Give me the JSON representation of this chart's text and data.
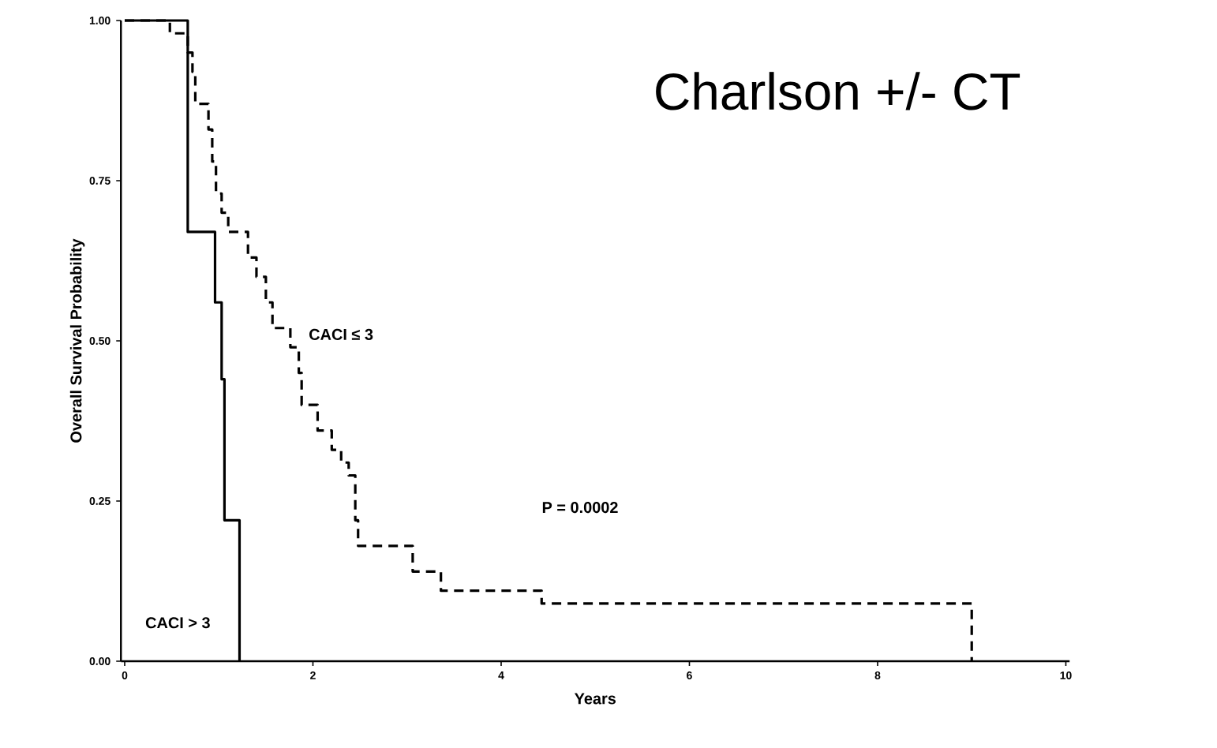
{
  "chart_data": {
    "type": "step",
    "xlabel": "Years",
    "ylabel": "Overall Survival Probability",
    "annotations": [
      "Charlson +/- CT",
      "P = 0.0002"
    ],
    "xlim": [
      0,
      10
    ],
    "ylim": [
      0,
      1
    ],
    "xticks": [
      0,
      2,
      4,
      6,
      8,
      10
    ],
    "yticks": [
      {
        "value": 0,
        "label": "0.00"
      },
      {
        "value": 0.25,
        "label": "0.25"
      },
      {
        "value": 0.5,
        "label": "0.50"
      },
      {
        "value": 0.75,
        "label": "0.75"
      },
      {
        "value": 1,
        "label": "1.00"
      }
    ],
    "grid": false,
    "legend": false,
    "series": [
      {
        "name": "CACI ≤ 3",
        "color": "#000000",
        "line_style": "dashed",
        "x": [
          0,
          0.48,
          0.67,
          0.72,
          0.75,
          0.89,
          0.93,
          0.97,
          1.03,
          1.1,
          1.31,
          1.4,
          1.5,
          1.57,
          1.76,
          1.85,
          1.88,
          2.05,
          2.2,
          2.3,
          2.38,
          2.45,
          2.48,
          3.06,
          3.36,
          4.43,
          9.0
        ],
        "values": [
          1.0,
          0.98,
          0.95,
          0.92,
          0.87,
          0.83,
          0.78,
          0.73,
          0.7,
          0.67,
          0.63,
          0.6,
          0.56,
          0.52,
          0.49,
          0.45,
          0.4,
          0.36,
          0.33,
          0.31,
          0.29,
          0.22,
          0.18,
          0.14,
          0.11,
          0.09,
          0
        ]
      },
      {
        "name": "CACI > 3",
        "color": "#000000",
        "line_style": "solid",
        "x": [
          0,
          0.67,
          0.96,
          1.03,
          1.06,
          1.22
        ],
        "values": [
          1.0,
          0.67,
          0.56,
          0.44,
          0.22,
          0
        ]
      }
    ]
  }
}
